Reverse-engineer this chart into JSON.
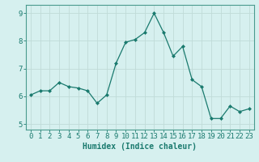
{
  "x": [
    0,
    1,
    2,
    3,
    4,
    5,
    6,
    7,
    8,
    9,
    10,
    11,
    12,
    13,
    14,
    15,
    16,
    17,
    18,
    19,
    20,
    21,
    22,
    23
  ],
  "y": [
    6.05,
    6.2,
    6.2,
    6.5,
    6.35,
    6.3,
    6.2,
    5.75,
    6.05,
    7.2,
    7.95,
    8.05,
    8.3,
    9.0,
    8.3,
    7.45,
    7.8,
    6.6,
    6.35,
    5.2,
    5.2,
    5.65,
    5.45,
    5.55
  ],
  "line_color": "#1a7a6e",
  "marker": "D",
  "marker_size": 2,
  "bg_color": "#d6f0ef",
  "grid_color": "#c0dbd8",
  "axis_color": "#4a9a8e",
  "xlabel": "Humidex (Indice chaleur)",
  "ylim": [
    4.8,
    9.3
  ],
  "xlim": [
    -0.5,
    23.5
  ],
  "yticks": [
    5,
    6,
    7,
    8,
    9
  ],
  "xticks": [
    0,
    1,
    2,
    3,
    4,
    5,
    6,
    7,
    8,
    9,
    10,
    11,
    12,
    13,
    14,
    15,
    16,
    17,
    18,
    19,
    20,
    21,
    22,
    23
  ],
  "tick_label_color": "#1a7a6e",
  "xlabel_fontsize": 7,
  "tick_fontsize": 6.5
}
